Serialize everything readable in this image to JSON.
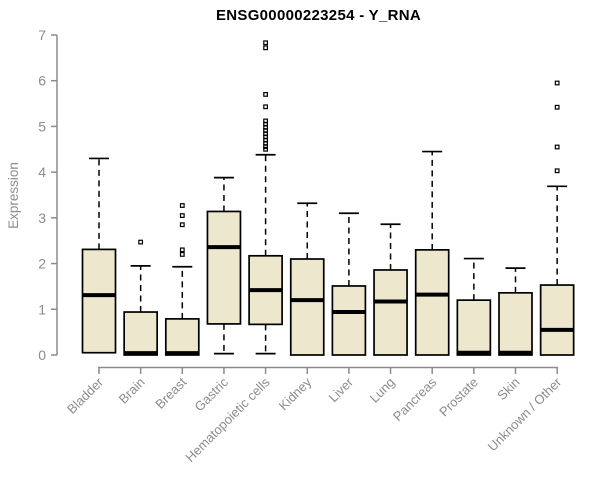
{
  "window": {
    "background": "#ffffff"
  },
  "chart_data": {
    "type": "boxplot",
    "title": "ENSG00000223254 - Y_RNA",
    "ylabel": "Expression",
    "xlabel": "",
    "ylim": [
      0,
      7
    ],
    "yticks": [
      0,
      1,
      2,
      3,
      4,
      5,
      6,
      7
    ],
    "grid": false,
    "legend": "none",
    "categories": [
      "Bladder",
      "Brain",
      "Breast",
      "Gastric",
      "Hematopoietic cells",
      "Kidney",
      "Liver",
      "Lung",
      "Pancreas",
      "Prostate",
      "Skin",
      "Unknown / Other"
    ],
    "series": [
      {
        "name": "Bladder",
        "whisker_low": 0.05,
        "q1": 0.05,
        "median": 1.31,
        "q3": 2.31,
        "whisker_high": 4.3,
        "outliers": []
      },
      {
        "name": "Brain",
        "whisker_low": 0.0,
        "q1": 0.0,
        "median": 0.04,
        "q3": 0.94,
        "whisker_high": 1.95,
        "outliers": [
          2.47
        ]
      },
      {
        "name": "Breast",
        "whisker_low": 0.0,
        "q1": 0.0,
        "median": 0.04,
        "q3": 0.79,
        "whisker_high": 1.93,
        "outliers": [
          2.2,
          2.3,
          2.85,
          3.05,
          3.27
        ]
      },
      {
        "name": "Gastric",
        "whisker_low": 0.03,
        "q1": 0.68,
        "median": 2.36,
        "q3": 3.14,
        "whisker_high": 3.88,
        "outliers": []
      },
      {
        "name": "Hematopoietic cells",
        "whisker_low": 0.03,
        "q1": 0.67,
        "median": 1.42,
        "q3": 2.17,
        "whisker_high": 4.38,
        "outliers": [
          4.5,
          4.56,
          4.63,
          4.7,
          4.77,
          4.84,
          4.91,
          4.98,
          5.05,
          5.12,
          5.43,
          5.7,
          6.72,
          6.83
        ]
      },
      {
        "name": "Kidney",
        "whisker_low": 0.0,
        "q1": 0.0,
        "median": 1.2,
        "q3": 2.1,
        "whisker_high": 3.32,
        "outliers": []
      },
      {
        "name": "Liver",
        "whisker_low": 0.0,
        "q1": 0.0,
        "median": 0.94,
        "q3": 1.51,
        "whisker_high": 3.1,
        "outliers": []
      },
      {
        "name": "Lung",
        "whisker_low": 0.0,
        "q1": 0.0,
        "median": 1.17,
        "q3": 1.86,
        "whisker_high": 2.86,
        "outliers": []
      },
      {
        "name": "Pancreas",
        "whisker_low": 0.0,
        "q1": 0.0,
        "median": 1.32,
        "q3": 2.3,
        "whisker_high": 4.45,
        "outliers": []
      },
      {
        "name": "Prostate",
        "whisker_low": 0.0,
        "q1": 0.0,
        "median": 0.05,
        "q3": 1.2,
        "whisker_high": 2.11,
        "outliers": []
      },
      {
        "name": "Skin",
        "whisker_low": 0.0,
        "q1": 0.0,
        "median": 0.05,
        "q3": 1.36,
        "whisker_high": 1.9,
        "outliers": []
      },
      {
        "name": "Unknown / Other",
        "whisker_low": 0.0,
        "q1": 0.0,
        "median": 0.55,
        "q3": 1.53,
        "whisker_high": 3.69,
        "outliers": [
          4.03,
          4.55,
          5.42,
          5.95
        ]
      }
    ],
    "colors": {
      "box_fill": "#ece7cd",
      "box_stroke": "#000000",
      "median": "#000000",
      "whisker": "#000000",
      "outlier_stroke": "#000000",
      "axis": "#8c8c8c",
      "tick_label": "#8c8c8c",
      "title": "#000000"
    }
  }
}
